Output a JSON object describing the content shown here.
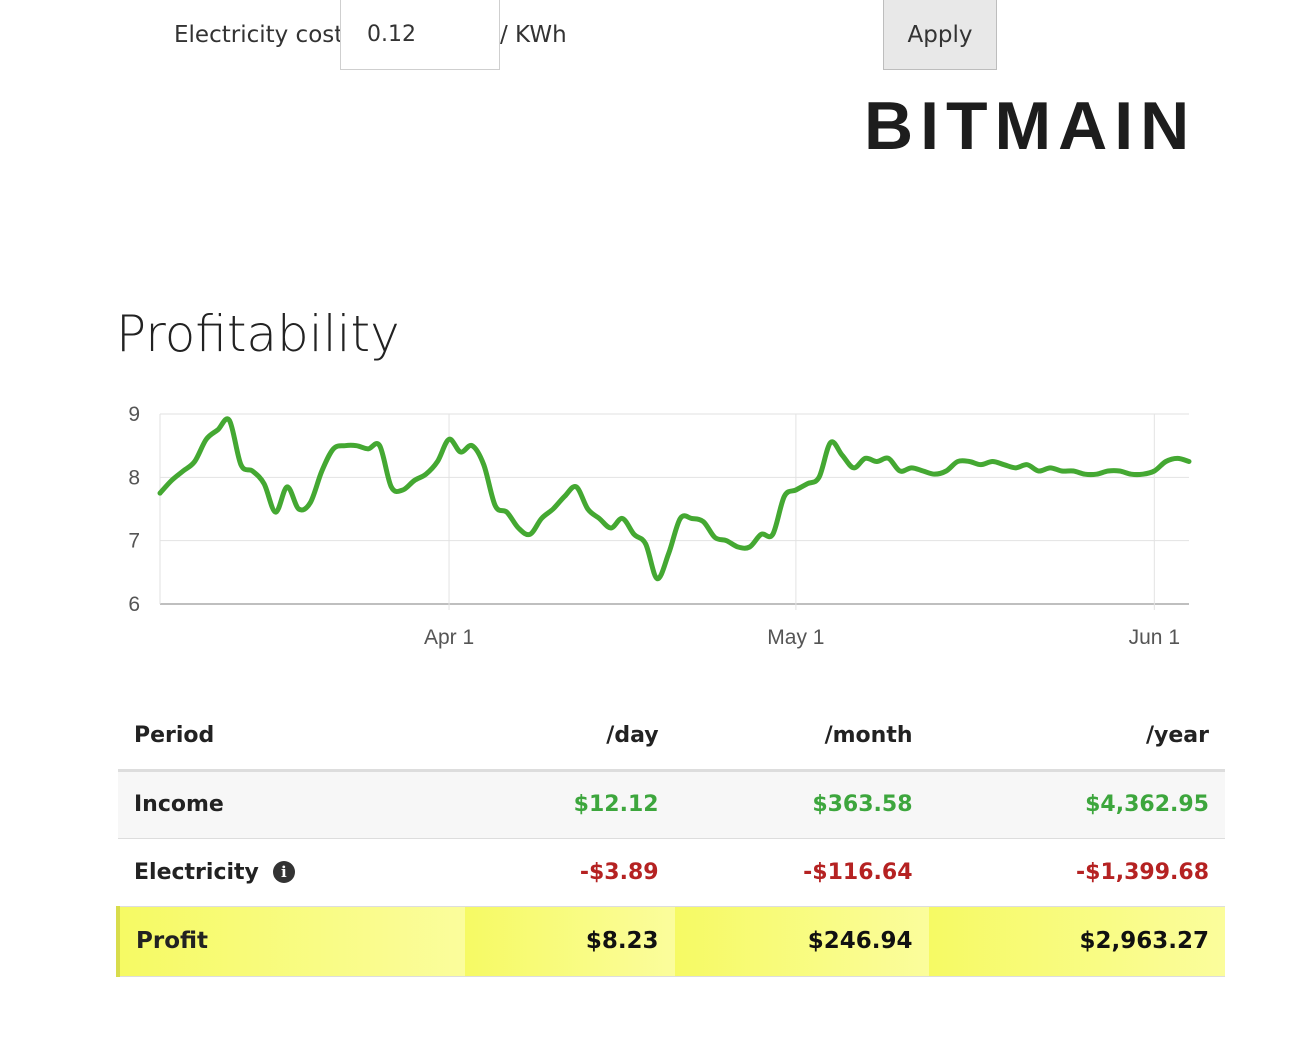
{
  "settings": {
    "electricity_label": "Electricity cost",
    "electricity_value": "0.12",
    "electricity_unit": "/ KWh",
    "apply_label": "Apply"
  },
  "brand": {
    "logo_text": "BITMAIN"
  },
  "section": {
    "title": "Profitability"
  },
  "chart_data": {
    "type": "line",
    "title": "",
    "xlabel": "",
    "ylabel": "",
    "ylim": [
      6,
      9
    ],
    "yticks": [
      "6",
      "7",
      "8",
      "9"
    ],
    "x_range_days": [
      0,
      89
    ],
    "xticks": [
      {
        "label": "Apr 1",
        "day": 25
      },
      {
        "label": "May 1",
        "day": 55
      },
      {
        "label": "Jun 1",
        "day": 86
      }
    ],
    "color": "#44a832",
    "series": [
      {
        "name": "Profit",
        "x": [
          0,
          1,
          2,
          3,
          4,
          5,
          6,
          7,
          8,
          9,
          10,
          11,
          12,
          13,
          14,
          15,
          16,
          17,
          18,
          19,
          20,
          21,
          22,
          23,
          24,
          25,
          26,
          27,
          28,
          29,
          30,
          31,
          32,
          33,
          34,
          35,
          36,
          37,
          38,
          39,
          40,
          41,
          42,
          43,
          44,
          45,
          46,
          47,
          48,
          49,
          50,
          51,
          52,
          53,
          54,
          55,
          56,
          57,
          58,
          59,
          60,
          61,
          62,
          63,
          64,
          65,
          66,
          67,
          68,
          69,
          70,
          71,
          72,
          73,
          74,
          75,
          76,
          77,
          78,
          79,
          80,
          81,
          82,
          83,
          84,
          85,
          86,
          87,
          88,
          89
        ],
        "values": [
          7.75,
          7.95,
          8.1,
          8.25,
          8.6,
          8.75,
          8.9,
          8.2,
          8.1,
          7.9,
          7.45,
          7.85,
          7.5,
          7.6,
          8.1,
          8.45,
          8.5,
          8.5,
          8.45,
          8.5,
          7.85,
          7.8,
          7.95,
          8.05,
          8.25,
          8.6,
          8.4,
          8.5,
          8.2,
          7.55,
          7.45,
          7.2,
          7.1,
          7.35,
          7.5,
          7.7,
          7.85,
          7.5,
          7.35,
          7.2,
          7.35,
          7.1,
          6.95,
          6.4,
          6.8,
          7.35,
          7.35,
          7.3,
          7.05,
          7.0,
          6.9,
          6.9,
          7.1,
          7.1,
          7.7,
          7.8,
          7.9,
          8.0,
          8.55,
          8.35,
          8.15,
          8.3,
          8.25,
          8.3,
          8.1,
          8.15,
          8.1,
          8.05,
          8.1,
          8.25,
          8.25,
          8.2,
          8.25,
          8.2,
          8.15,
          8.2,
          8.1,
          8.15,
          8.1,
          8.1,
          8.05,
          8.05,
          8.1,
          8.1,
          8.05,
          8.05,
          8.1,
          8.25,
          8.3,
          8.25
        ]
      }
    ]
  },
  "table": {
    "headers": [
      "Period",
      "/day",
      "/month",
      "/year"
    ],
    "income": {
      "label": "Income",
      "day": "$12.12",
      "month": "$363.58",
      "year": "$4,362.95"
    },
    "electricity": {
      "label": "Electricity",
      "day": "-$3.89",
      "month": "-$116.64",
      "year": "-$1,399.68"
    },
    "profit": {
      "label": "Profit",
      "day": "$8.23",
      "month": "$246.94",
      "year": "$2,963.27"
    },
    "info_icon_glyph": "i"
  },
  "colors": {
    "positive": "#3da63d",
    "negative": "#b52222",
    "highlight": "#f6fa64"
  }
}
